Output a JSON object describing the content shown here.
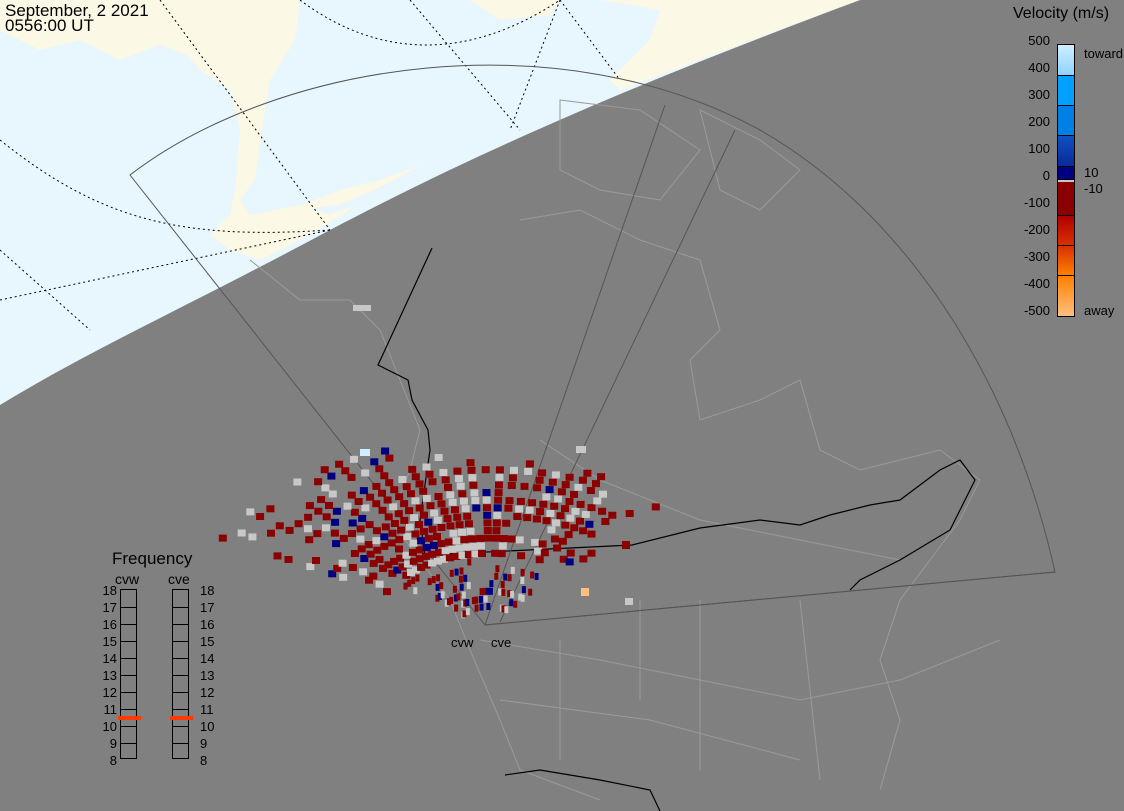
{
  "header": {
    "date": "September, 2 2021",
    "time": "0556:00 UT"
  },
  "colorbar": {
    "title": "Velocity (m/s)",
    "ticks": [
      "500",
      "400",
      "300",
      "200",
      "100",
      "0",
      "-100",
      "-200",
      "-300",
      "-400",
      "-500"
    ],
    "toward_label": "toward",
    "away_label": "away",
    "plus_threshold": "10",
    "minus_threshold": "-10",
    "colors": [
      "#cfeeff",
      "#8fd3ff",
      "#00a0ff",
      "#0080e6",
      "#1150c0",
      "#0a2a9a",
      "#000080",
      "#c8c8c8",
      "#8b0000",
      "#b00000",
      "#d83000",
      "#ff8000",
      "#ffbf80",
      "#ffe8d0"
    ]
  },
  "frequency": {
    "title": "Frequency",
    "unit_ticks": [
      "18",
      "17",
      "16",
      "15",
      "14",
      "13",
      "12",
      "11",
      "10",
      "9",
      "8"
    ],
    "radars": [
      {
        "name": "cvw",
        "freq_mhz": 10.5
      },
      {
        "name": "cve",
        "freq_mhz": 10.5
      }
    ],
    "marker_color": "#ff3a00"
  },
  "map": {
    "radar_labels": [
      "cvw",
      "cve"
    ],
    "colors": {
      "night": "#808080",
      "day_ocean": "#e8f6fe",
      "day_land": "#fbf8e6",
      "ground_scatter": "#c8c8c8",
      "away_low": "#8b0000",
      "toward_low": "#000080"
    }
  }
}
